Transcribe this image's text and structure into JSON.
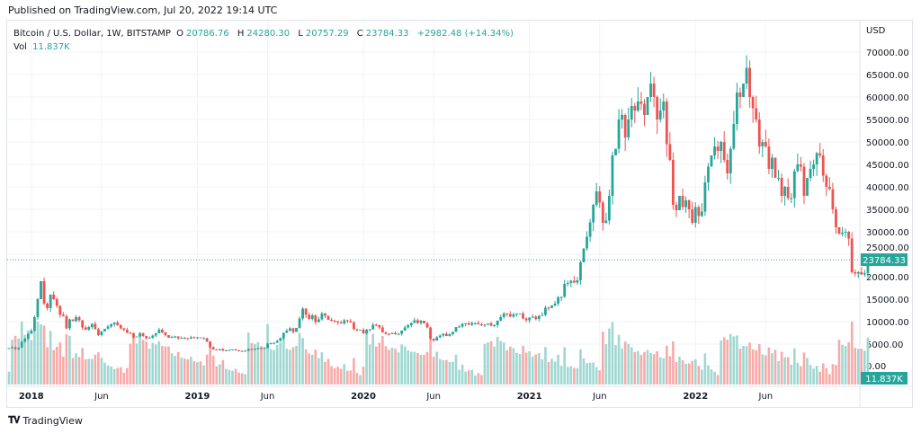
{
  "header": {
    "published": "Published on TradingView.com, Jul 20, 2022 19:14 UTC"
  },
  "legend": {
    "symbol": "Bitcoin / U.S. Dollar, 1W, BITSTAMP",
    "open_label": "O",
    "open": "20786.76",
    "high_label": "H",
    "high": "24280.30",
    "low_label": "L",
    "low": "20757.29",
    "close_label": "C",
    "close": "23784.33",
    "change": "+2982.48 (+14.34%)",
    "vol_label": "Vol",
    "vol": "11.837K"
  },
  "footer": {
    "brand": "TradingView",
    "logo_icon": "tradingview-logo-icon"
  },
  "colors": {
    "up": "#26a69a",
    "down": "#ef5350",
    "up_vol": "#9fd7d1",
    "down_vol": "#f7aaa8",
    "grid": "#f0f3fa",
    "axis_text": "#131722"
  },
  "chart_data": {
    "type": "candlestick",
    "title": "Bitcoin / U.S. Dollar, 1W, BITSTAMP",
    "ylabel": "USD",
    "ylim": [
      0,
      72000
    ],
    "y_ticks": [
      "70000.00",
      "65000.00",
      "60000.00",
      "55000.00",
      "50000.00",
      "45000.00",
      "40000.00",
      "35000.00",
      "30000.00",
      "25000.00",
      "20000.00",
      "15000.00",
      "10000.00",
      "5000.00",
      "0.00"
    ],
    "x_ticks": [
      {
        "label": "2018",
        "week": 7,
        "bold": true
      },
      {
        "label": "Jun",
        "week": 29,
        "bold": false
      },
      {
        "label": "2019",
        "week": 59,
        "bold": true
      },
      {
        "label": "Jun",
        "week": 81,
        "bold": false
      },
      {
        "label": "2020",
        "week": 111,
        "bold": true
      },
      {
        "label": "Jun",
        "week": 133,
        "bold": false
      },
      {
        "label": "2021",
        "week": 163,
        "bold": true
      },
      {
        "label": "Jun",
        "week": 185,
        "bold": false
      },
      {
        "label": "2022",
        "week": 215,
        "bold": true
      },
      {
        "label": "Jun",
        "week": 237,
        "bold": false
      }
    ],
    "last_price": 23784.33,
    "last_price_label": "23784.33",
    "last_volume_label": "11.837K",
    "weekly_close": [
      4100,
      4300,
      3900,
      4200,
      5500,
      6200,
      7300,
      8000,
      11000,
      15000,
      19000,
      14000,
      13000,
      16000,
      15000,
      13500,
      11500,
      11200,
      8500,
      10500,
      10100,
      11000,
      10300,
      8700,
      8200,
      8800,
      9500,
      8300,
      7000,
      7800,
      8400,
      8900,
      9400,
      9800,
      9200,
      8500,
      8200,
      7500,
      7400,
      6500,
      6700,
      7400,
      6800,
      6300,
      6400,
      6900,
      7400,
      8200,
      7600,
      7000,
      6400,
      6600,
      6700,
      6300,
      6400,
      6300,
      6200,
      6500,
      6400,
      6500,
      6300,
      6300,
      5600,
      4300,
      3800,
      3700,
      3900,
      3500,
      3600,
      3700,
      3800,
      3600,
      3500,
      3400,
      3500,
      3900,
      3800,
      3900,
      4100,
      4000,
      4100,
      5100,
      5200,
      5300,
      5700,
      6300,
      7500,
      8000,
      8500,
      7700,
      8600,
      10700,
      12900,
      11500,
      10600,
      11400,
      9900,
      10500,
      11800,
      11300,
      10400,
      10200,
      10100,
      9800,
      9600,
      10300,
      10100,
      9800,
      8300,
      8100,
      8200,
      7400,
      8200,
      8300,
      9300,
      9200,
      8700,
      7600,
      7300,
      7200,
      7500,
      7200,
      7300,
      8000,
      8700,
      9200,
      9700,
      10300,
      9700,
      10200,
      9600,
      8700,
      6200,
      5800,
      6500,
      6900,
      7300,
      6800,
      7200,
      7700,
      8800,
      8900,
      9500,
      9600,
      9300,
      9700,
      9700,
      9400,
      9200,
      9300,
      9600,
      9100,
      9200,
      10200,
      11000,
      11800,
      11700,
      11100,
      11600,
      11700,
      11800,
      10700,
      10300,
      10900,
      11100,
      10600,
      11300,
      11500,
      13100,
      13000,
      13600,
      14000,
      15400,
      15500,
      18400,
      18600,
      19100,
      18700,
      19200,
      23200,
      26300,
      28900,
      32100,
      36000,
      39000,
      36500,
      32000,
      32500,
      38000,
      47000,
      48500,
      55000,
      56000,
      51000,
      55000,
      58000,
      57000,
      59000,
      58500,
      56000,
      60000,
      63000,
      60000,
      55000,
      57000,
      59000,
      49500,
      46000,
      36000,
      34800,
      38000,
      35500,
      37000,
      35000,
      32000,
      35500,
      33500,
      34500,
      41000,
      44500,
      47000,
      49000,
      48000,
      50000,
      46000,
      43000,
      48500,
      54000,
      61000,
      60000,
      63000,
      66500,
      60000,
      57500,
      55000,
      49000,
      50000,
      49000,
      44000,
      46500,
      42000,
      42000,
      38000,
      40000,
      37500,
      37500,
      43500,
      45000,
      44500,
      38000,
      42000,
      44000,
      45000,
      47500,
      47000,
      42500,
      40000,
      39500,
      35000,
      31000,
      29500,
      29800,
      30000,
      28500,
      21000,
      20700,
      21000,
      20500,
      20787,
      23784
    ],
    "volume_note": "Volume histogram shown below candles, colored by candle direction"
  }
}
